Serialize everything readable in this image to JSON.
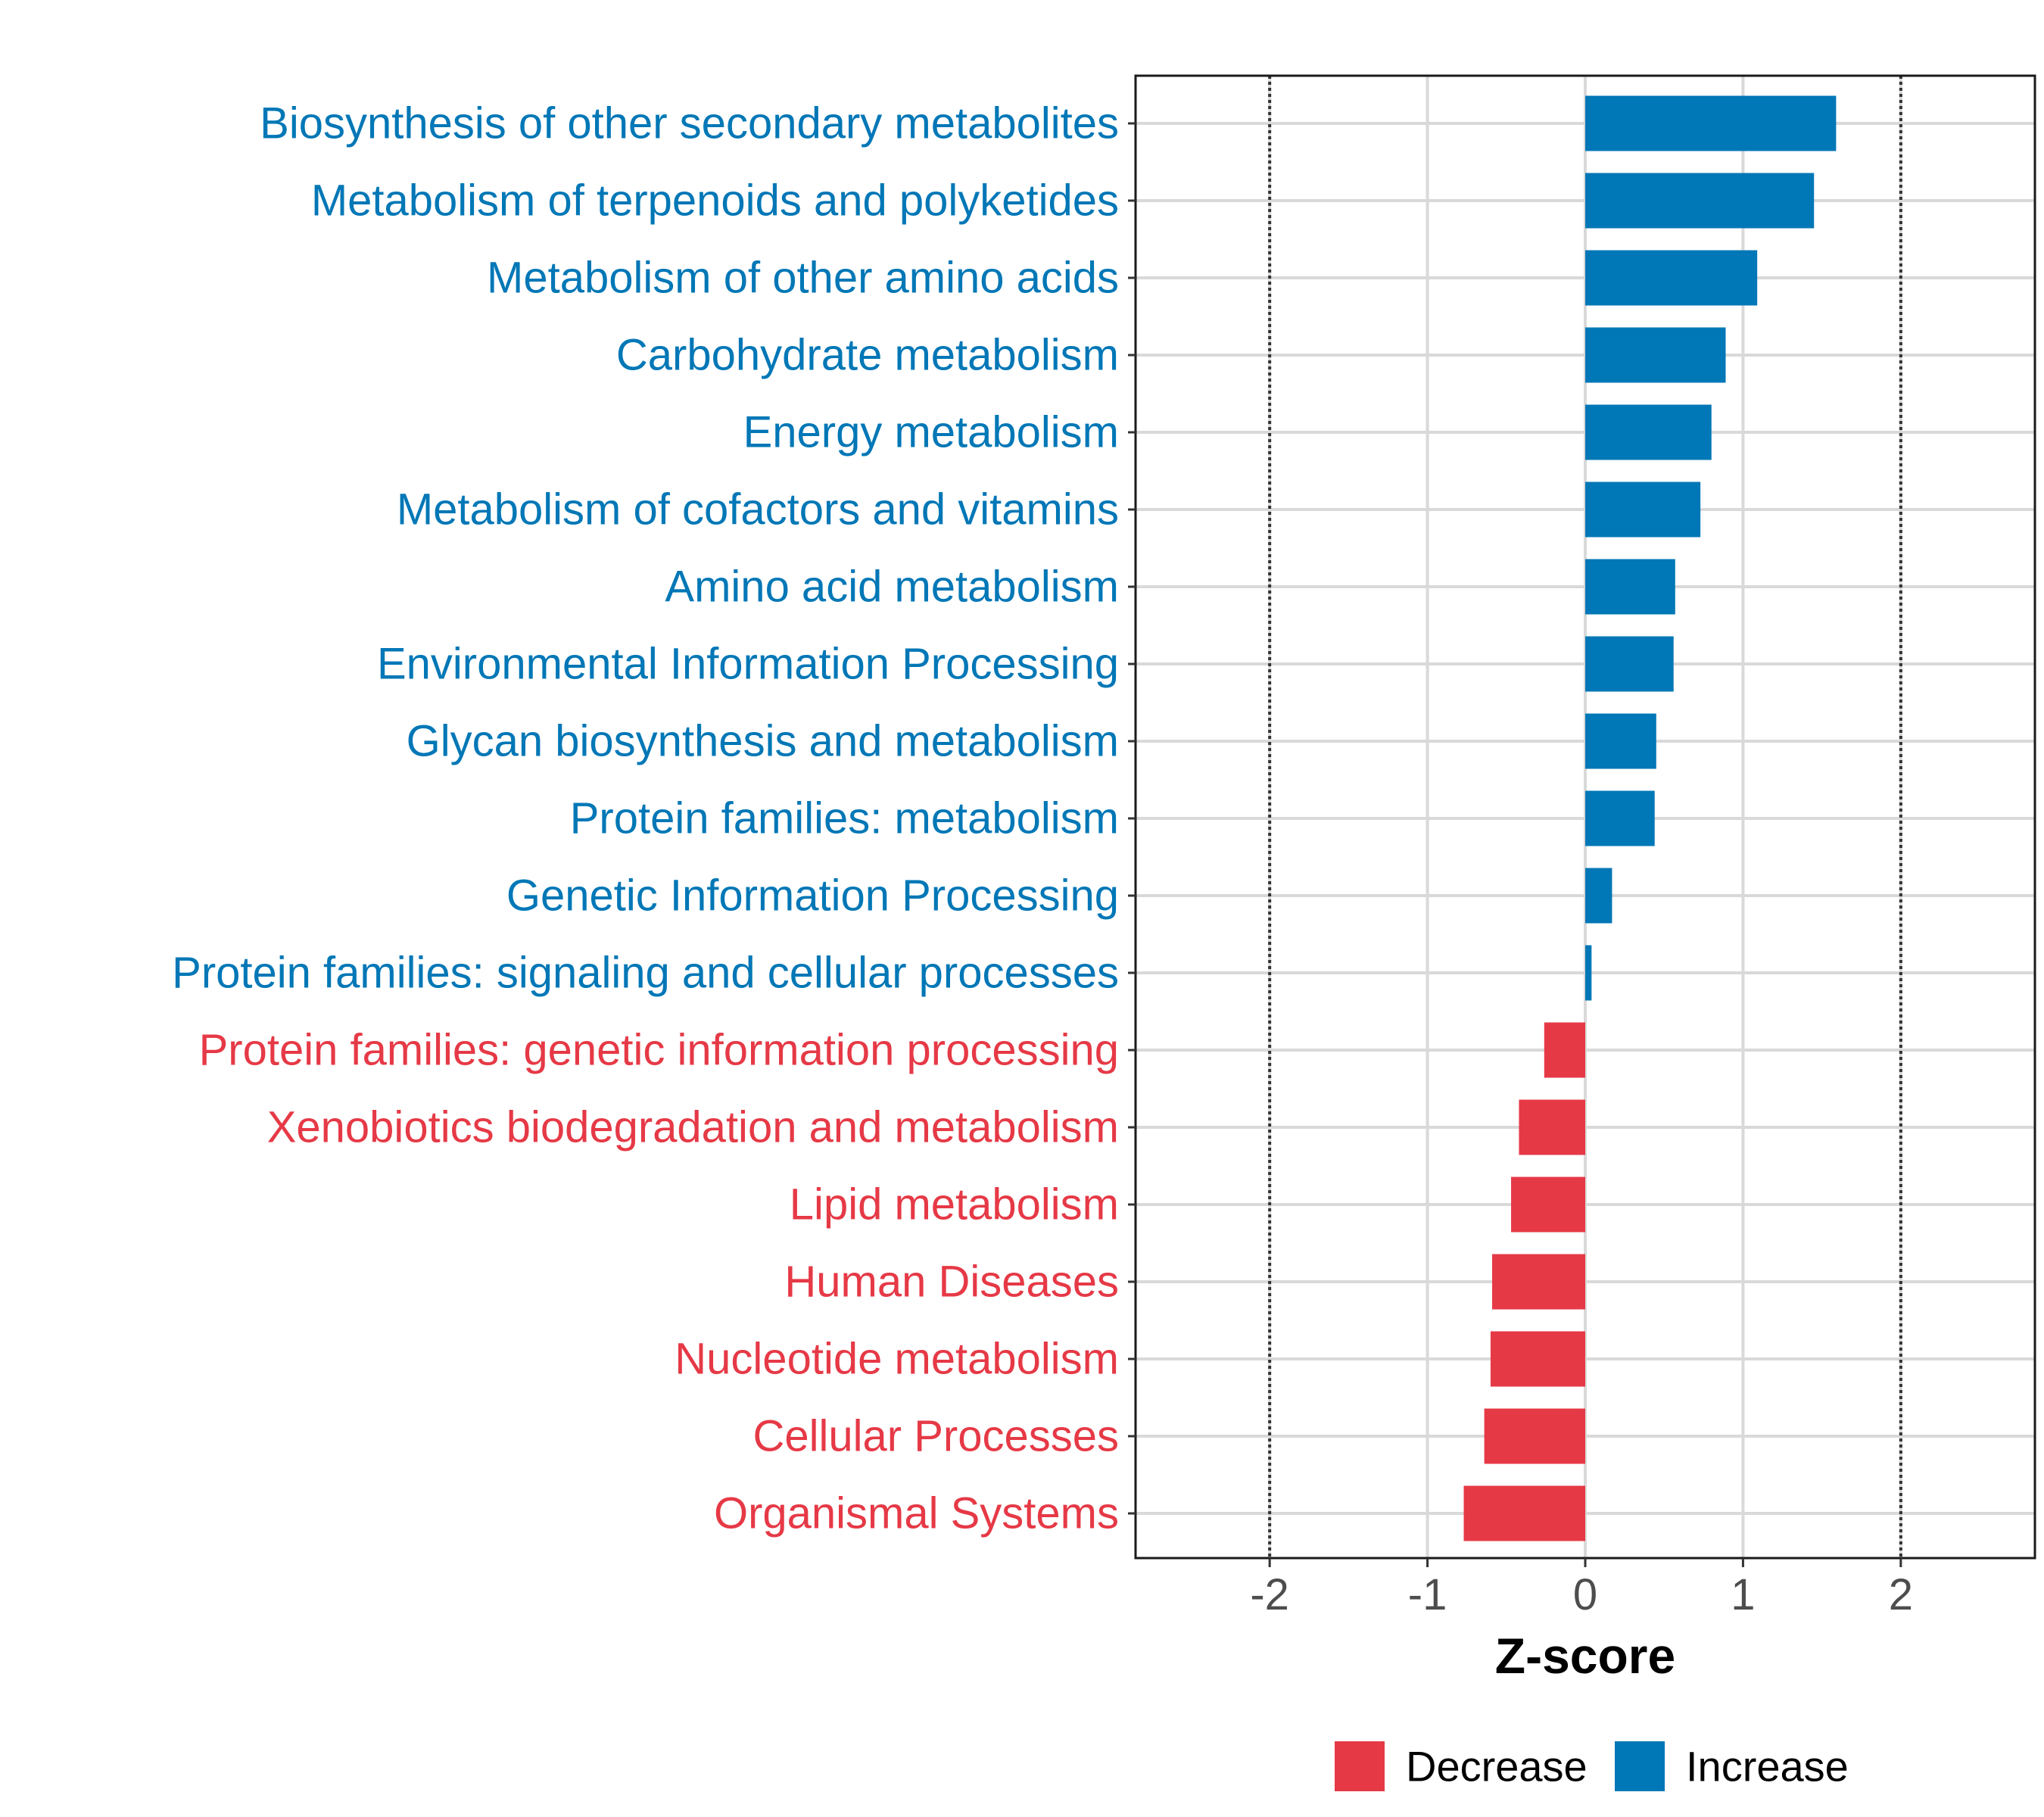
{
  "chart_data": {
    "type": "bar",
    "orientation": "horizontal",
    "xlabel": "Z-score",
    "ylabel": "",
    "xlim": [
      -2.85,
      2.85
    ],
    "x_ticks": [
      -2,
      -1,
      0,
      1,
      2
    ],
    "reference_lines": [
      -2,
      2
    ],
    "grid": true,
    "legend_position": "bottom",
    "legend": [
      {
        "name": "Decrease",
        "color": "#E63946"
      },
      {
        "name": "Increase",
        "color": "#0077B6"
      }
    ],
    "categories": [
      "Biosynthesis of other secondary metabolites",
      "Metabolism of terpenoids and polyketides",
      "Metabolism of other amino acids",
      "Carbohydrate metabolism",
      "Energy metabolism",
      "Metabolism of cofactors and vitamins",
      "Amino acid metabolism",
      "Environmental Information Processing",
      "Glycan biosynthesis and metabolism",
      "Protein families: metabolism",
      "Genetic Information Processing",
      "Protein families: signaling and cellular processes",
      "Protein families: genetic information processing",
      "Xenobiotics biodegradation and metabolism",
      "Lipid metabolism",
      "Human Diseases",
      "Nucleotide metabolism",
      "Cellular Processes",
      "Organismal Systems"
    ],
    "values": [
      1.59,
      1.45,
      1.09,
      0.89,
      0.8,
      0.73,
      0.57,
      0.56,
      0.45,
      0.44,
      0.17,
      0.04,
      -0.26,
      -0.42,
      -0.47,
      -0.59,
      -0.6,
      -0.64,
      -0.77
    ],
    "groups": [
      "Increase",
      "Increase",
      "Increase",
      "Increase",
      "Increase",
      "Increase",
      "Increase",
      "Increase",
      "Increase",
      "Increase",
      "Increase",
      "Increase",
      "Decrease",
      "Decrease",
      "Decrease",
      "Decrease",
      "Decrease",
      "Decrease",
      "Decrease"
    ],
    "colors": {
      "Increase": "#0077B6",
      "Decrease": "#E63946"
    }
  }
}
